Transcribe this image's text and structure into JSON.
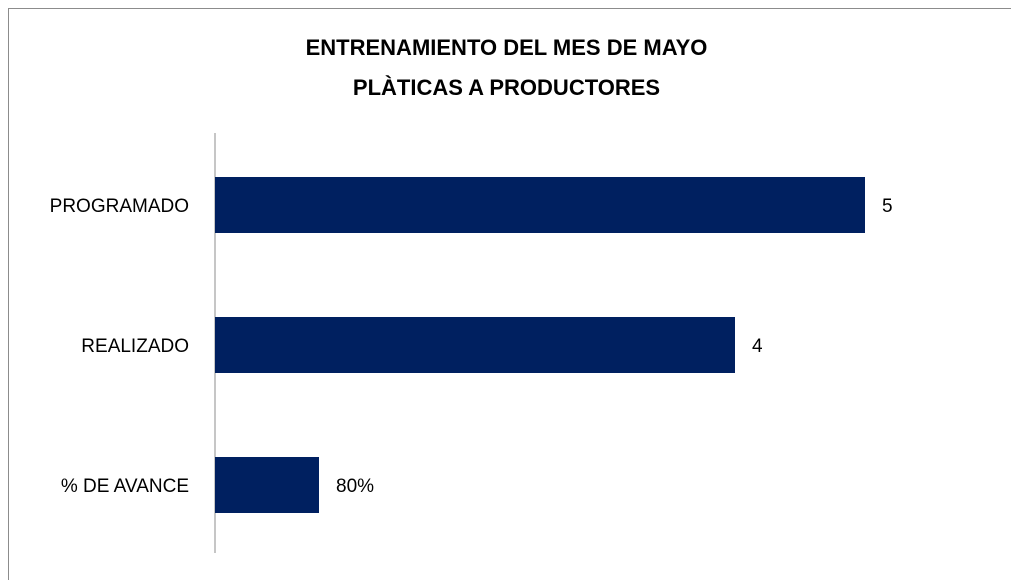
{
  "chart_data": {
    "type": "bar",
    "orientation": "horizontal",
    "title_lines": [
      "ENTRENAMIENTO DEL MES DE MAYO",
      "PLÀTICAS A PRODUCTORES"
    ],
    "categories": [
      "PROGRAMADO",
      "REALIZADO",
      "% DE AVANCE"
    ],
    "values": [
      5,
      4,
      0.8
    ],
    "data_labels": [
      "5",
      "4",
      "80%"
    ],
    "xlim": [
      0,
      5.5
    ],
    "bar_color": "#002060",
    "grid": false,
    "legend": "none"
  }
}
